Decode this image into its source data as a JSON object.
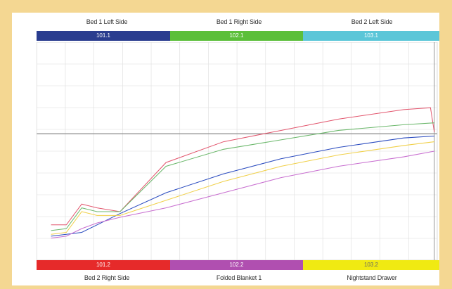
{
  "channels": {
    "top": [
      {
        "name": "Bed 1 Left Side",
        "value": "101.1",
        "color": "#2a3d8f"
      },
      {
        "name": "Bed 1 Right Side",
        "value": "102.1",
        "color": "#5bbf3a"
      },
      {
        "name": "Bed 2 Left Side",
        "value": "103.1",
        "color": "#5bc6d8"
      }
    ],
    "bottom": [
      {
        "name": "Bed 2 Right Side",
        "value": "101.2",
        "color": "#e62a2a"
      },
      {
        "name": "Folded Blanket 1",
        "value": "102.2",
        "color": "#b04fb0"
      },
      {
        "name": "Nightstand Drawer",
        "value": "103.2",
        "color": "#f0ea12"
      }
    ]
  },
  "chart_data": {
    "type": "line",
    "series": [
      {
        "color": "#e2556d",
        "values": [
          [
            0,
            0.11
          ],
          [
            0.04,
            0.11
          ],
          [
            0.08,
            0.22
          ],
          [
            0.12,
            0.2
          ],
          [
            0.18,
            0.18
          ],
          [
            0.3,
            0.44
          ],
          [
            0.45,
            0.55
          ],
          [
            0.6,
            0.61
          ],
          [
            0.75,
            0.67
          ],
          [
            0.92,
            0.72
          ],
          [
            0.99,
            0.73
          ],
          [
            1,
            0.6
          ]
        ]
      },
      {
        "color": "#6cb86c",
        "values": [
          [
            0,
            0.08
          ],
          [
            0.04,
            0.09
          ],
          [
            0.08,
            0.2
          ],
          [
            0.12,
            0.18
          ],
          [
            0.18,
            0.18
          ],
          [
            0.3,
            0.42
          ],
          [
            0.45,
            0.51
          ],
          [
            0.6,
            0.56
          ],
          [
            0.75,
            0.61
          ],
          [
            0.92,
            0.64
          ],
          [
            1,
            0.65
          ]
        ]
      },
      {
        "color": "#2a4bbf",
        "values": [
          [
            0,
            0.05
          ],
          [
            0.04,
            0.06
          ],
          [
            0.08,
            0.07
          ],
          [
            0.12,
            0.11
          ],
          [
            0.18,
            0.17
          ],
          [
            0.3,
            0.28
          ],
          [
            0.45,
            0.38
          ],
          [
            0.6,
            0.46
          ],
          [
            0.75,
            0.52
          ],
          [
            0.92,
            0.57
          ],
          [
            1,
            0.58
          ]
        ]
      },
      {
        "color": "#f0d04a",
        "values": [
          [
            0,
            0.06
          ],
          [
            0.04,
            0.07
          ],
          [
            0.08,
            0.18
          ],
          [
            0.12,
            0.16
          ],
          [
            0.18,
            0.16
          ],
          [
            0.3,
            0.24
          ],
          [
            0.45,
            0.34
          ],
          [
            0.6,
            0.42
          ],
          [
            0.75,
            0.48
          ],
          [
            0.92,
            0.53
          ],
          [
            1,
            0.55
          ]
        ]
      },
      {
        "color": "#c86fd0",
        "values": [
          [
            0,
            0.04
          ],
          [
            0.04,
            0.05
          ],
          [
            0.08,
            0.09
          ],
          [
            0.12,
            0.12
          ],
          [
            0.18,
            0.15
          ],
          [
            0.3,
            0.2
          ],
          [
            0.45,
            0.28
          ],
          [
            0.6,
            0.36
          ],
          [
            0.75,
            0.42
          ],
          [
            0.92,
            0.47
          ],
          [
            1,
            0.5
          ]
        ]
      }
    ]
  }
}
